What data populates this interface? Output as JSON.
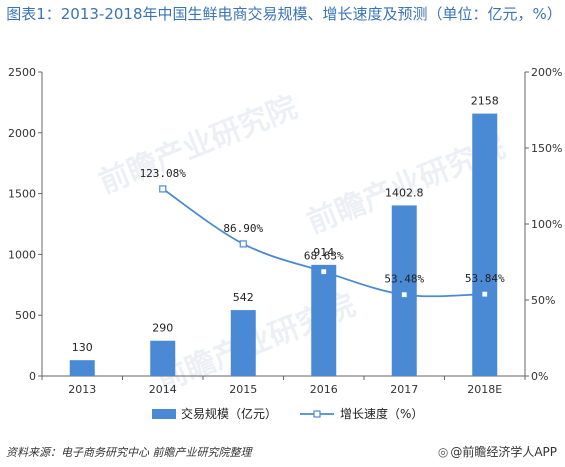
{
  "page": {
    "title": "图表1：2013-2018年中国生鲜电商交易规模、增长速度及预测（单位：亿元，%）",
    "source": "资料来源：电子商务研究中心 前瞻产业研究院整理",
    "brand": "@前瞻经济学人APP",
    "watermark": "前瞻产业研究院"
  },
  "chart_data": {
    "type": "bar",
    "categories": [
      "2013",
      "2014",
      "2015",
      "2016",
      "2017",
      "2018E"
    ],
    "series": [
      {
        "name": "交易规模（亿元）",
        "kind": "bar",
        "axis": "left",
        "color": "#4a8ad4",
        "values": [
          130,
          290,
          542,
          914,
          1402.8,
          2158
        ],
        "labels": [
          "130",
          "290",
          "542",
          "914",
          "1402.8",
          "2158"
        ]
      },
      {
        "name": "增长速度（%）",
        "kind": "line",
        "axis": "right",
        "color": "#4a8ad4",
        "values": [
          null,
          123.08,
          86.9,
          68.63,
          53.48,
          53.84
        ],
        "labels": [
          "",
          "123.08%",
          "86.90%",
          "68.63%",
          "53.48%",
          "53.84%"
        ]
      }
    ],
    "y_left": {
      "min": 0,
      "max": 2500,
      "ticks": [
        0,
        500,
        1000,
        1500,
        2000,
        2500
      ],
      "tick_labels": [
        "0",
        "500",
        "1000",
        "1500",
        "2000",
        "2500"
      ]
    },
    "y_right": {
      "min": 0,
      "max": 200,
      "ticks": [
        0,
        50,
        100,
        150,
        200
      ],
      "tick_labels": [
        "0%",
        "50%",
        "100%",
        "150%",
        "200%"
      ]
    },
    "grid": false,
    "legend_position": "bottom"
  }
}
